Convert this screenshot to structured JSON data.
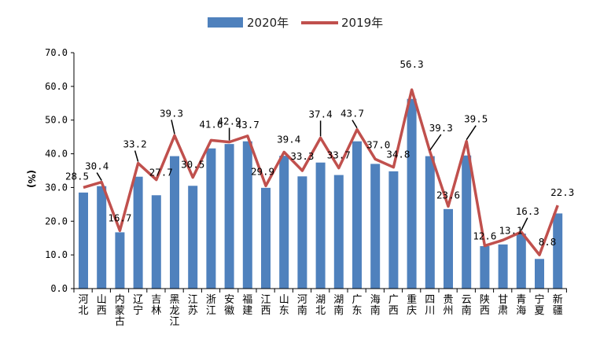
{
  "chart_data": {
    "type": "bar",
    "title": "",
    "xlabel": "",
    "ylabel": "(%)",
    "ylim": [
      0,
      70
    ],
    "yticks": [
      "0.0",
      "10.0",
      "20.0",
      "30.0",
      "40.0",
      "50.0",
      "60.0",
      "70.0"
    ],
    "legend_position": "top-center",
    "grid": false,
    "categories": [
      "河北",
      "山西",
      "内蒙古",
      "辽宁",
      "吉林",
      "黑龙江",
      "江苏",
      "浙江",
      "安徽",
      "福建",
      "江西",
      "山东",
      "河南",
      "湖北",
      "湖南",
      "广东",
      "海南",
      "广西",
      "重庆",
      "四川",
      "贵州",
      "云南",
      "陕西",
      "甘肃",
      "青海",
      "宁夏",
      "新疆"
    ],
    "series": [
      {
        "name": "2020年",
        "type": "bar",
        "color": "#4f81bd",
        "values": [
          28.5,
          30.4,
          16.7,
          33.2,
          27.7,
          39.3,
          30.5,
          41.6,
          42.9,
          43.7,
          29.9,
          39.4,
          33.3,
          37.4,
          33.7,
          43.7,
          37.0,
          34.8,
          56.3,
          39.3,
          23.6,
          39.5,
          12.6,
          13.1,
          16.3,
          8.8,
          22.3
        ]
      },
      {
        "name": "2019年",
        "type": "line",
        "color": "#c0504d",
        "values": [
          30.0,
          31.6,
          17.2,
          37.2,
          32.3,
          45.4,
          33.0,
          44.0,
          43.5,
          45.3,
          30.5,
          40.5,
          35.0,
          44.7,
          35.8,
          47.2,
          38.4,
          36.0,
          59.0,
          40.6,
          24.4,
          43.7,
          12.7,
          14.4,
          16.8,
          10.0,
          24.7
        ]
      }
    ],
    "data_labels": [
      "28.5",
      "30.4",
      "16.7",
      "33.2",
      "27.7",
      "39.3",
      "30.5",
      "41.6",
      "42.9",
      "43.7",
      "29.9",
      "39.4",
      "33.3",
      "37.4",
      "33.7",
      "43.7",
      "37.0",
      "34.8",
      "56.3",
      "39.3",
      "23.6",
      "39.5",
      "12.6",
      "13.1",
      "16.3",
      "8.8",
      "22.3"
    ]
  }
}
